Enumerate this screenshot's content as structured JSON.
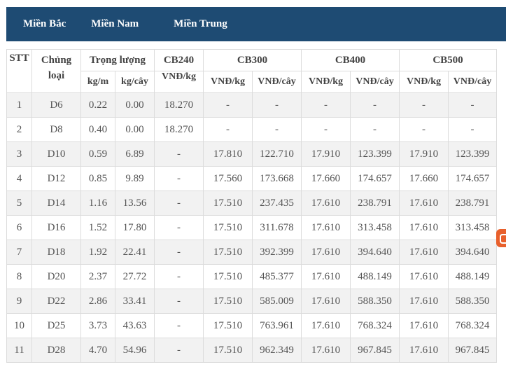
{
  "tabs": [
    "Miền Bắc",
    "Miền Nam",
    "Miền Trung"
  ],
  "table": {
    "headers": {
      "stt": "STT",
      "type_line1": "Chủng",
      "type_line2": "loại",
      "weight": "Trọng lượng",
      "cb240": "CB240",
      "cb300": "CB300",
      "cb400": "CB400",
      "cb500": "CB500",
      "kg_m": "kg/m",
      "kg_cay": "kg/cây",
      "vnd_kg": "VNĐ/kg",
      "vnd_cay": "VNĐ/cây"
    },
    "rows": [
      [
        "1",
        "D6",
        "0.22",
        "0.00",
        "18.270",
        "-",
        "-",
        "-",
        "-",
        "-",
        "-"
      ],
      [
        "2",
        "D8",
        "0.40",
        "0.00",
        "18.270",
        "-",
        "-",
        "-",
        "-",
        "-",
        "-"
      ],
      [
        "3",
        "D10",
        "0.59",
        "6.89",
        "-",
        "17.810",
        "122.710",
        "17.910",
        "123.399",
        "17.910",
        "123.399"
      ],
      [
        "4",
        "D12",
        "0.85",
        "9.89",
        "-",
        "17.560",
        "173.668",
        "17.660",
        "174.657",
        "17.660",
        "174.657"
      ],
      [
        "5",
        "D14",
        "1.16",
        "13.56",
        "-",
        "17.510",
        "237.435",
        "17.610",
        "238.791",
        "17.610",
        "238.791"
      ],
      [
        "6",
        "D16",
        "1.52",
        "17.80",
        "-",
        "17.510",
        "311.678",
        "17.610",
        "313.458",
        "17.610",
        "313.458"
      ],
      [
        "7",
        "D18",
        "1.92",
        "22.41",
        "-",
        "17.510",
        "392.399",
        "17.610",
        "394.640",
        "17.610",
        "394.640"
      ],
      [
        "8",
        "D20",
        "2.37",
        "27.72",
        "-",
        "17.510",
        "485.377",
        "17.610",
        "488.149",
        "17.610",
        "488.149"
      ],
      [
        "9",
        "D22",
        "2.86",
        "33.41",
        "-",
        "17.510",
        "585.009",
        "17.610",
        "588.350",
        "17.610",
        "588.350"
      ],
      [
        "10",
        "D25",
        "3.73",
        "43.63",
        "-",
        "17.510",
        "763.961",
        "17.610",
        "768.324",
        "17.610",
        "768.324"
      ],
      [
        "11",
        "D28",
        "4.70",
        "54.96",
        "-",
        "17.510",
        "962.349",
        "17.610",
        "967.845",
        "17.610",
        "967.845"
      ]
    ]
  },
  "colors": {
    "tab_bar": "#1e4b73",
    "row_striped": "#f2f2f2",
    "border": "#dcdcdc",
    "badge": "#e8602c"
  },
  "icons": {
    "badge": "orange-widget-icon"
  }
}
